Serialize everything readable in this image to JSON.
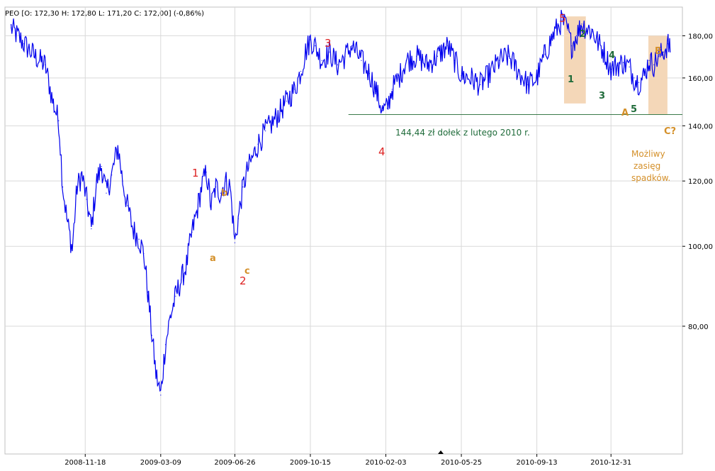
{
  "header": {
    "ohlc_text": "PEO [O: 172,30  H: 172,80  L: 171,20  C: 172,00] (-0,86%)"
  },
  "colors": {
    "price": "#0000ee",
    "red": "#dd2222",
    "orange": "#d4902a",
    "green": "#1f6b3a",
    "band": "#f4d7b8",
    "grid": "#d9d9d9",
    "support": "#3a7a4a"
  },
  "chart_data": {
    "type": "line",
    "title": "",
    "xlabel": "",
    "ylabel": "",
    "scale": "log",
    "ylim": [
      56,
      195
    ],
    "y_ticks": [
      80,
      100,
      120,
      140,
      160,
      180
    ],
    "y_tick_labels": [
      "80,00",
      "100,00",
      "120,00",
      "140,00",
      "160,00",
      "180,00"
    ],
    "x_ticks": [
      "2008-11-18",
      "2009-03-09",
      "2009-06-26",
      "2009-10-15",
      "2010-02-03",
      "2010-05-25",
      "2010-09-13",
      "2010-12-31"
    ],
    "grid": true,
    "series": [
      {
        "x": [
          "2008-08-01",
          "2008-08-20",
          "2008-09-05",
          "2008-09-20",
          "2008-10-01",
          "2008-10-10",
          "2008-10-16",
          "2008-10-22",
          "2008-10-30",
          "2008-11-06",
          "2008-11-13",
          "2008-11-20",
          "2008-11-27",
          "2008-12-05",
          "2008-12-12",
          "2008-12-19",
          "2008-12-27",
          "2009-01-05",
          "2009-01-12",
          "2009-01-19",
          "2009-01-27",
          "2009-02-05",
          "2009-02-12",
          "2009-02-18",
          "2009-02-24",
          "2009-03-02",
          "2009-03-09",
          "2009-03-16",
          "2009-03-23",
          "2009-03-31",
          "2009-04-08",
          "2009-04-16",
          "2009-04-24",
          "2009-05-01",
          "2009-05-08",
          "2009-05-15",
          "2009-05-22",
          "2009-05-29",
          "2009-06-05",
          "2009-06-12",
          "2009-06-19",
          "2009-06-26",
          "2009-07-01",
          "2009-07-08",
          "2009-07-15",
          "2009-07-22",
          "2009-07-30",
          "2009-08-10",
          "2009-08-20",
          "2009-09-01",
          "2009-09-10",
          "2009-09-22",
          "2009-10-01",
          "2009-10-08",
          "2009-10-15",
          "2009-10-22",
          "2009-11-01",
          "2009-11-12",
          "2009-11-24",
          "2009-12-05",
          "2009-12-15",
          "2009-12-29",
          "2010-01-10",
          "2010-01-20",
          "2010-01-29",
          "2010-02-05",
          "2010-02-12",
          "2010-02-22",
          "2010-03-05",
          "2010-03-20",
          "2010-04-05",
          "2010-04-20",
          "2010-05-05",
          "2010-05-15",
          "2010-05-25",
          "2010-06-08",
          "2010-06-22",
          "2010-07-06",
          "2010-07-20",
          "2010-08-03",
          "2010-08-17",
          "2010-08-31",
          "2010-09-13",
          "2010-09-25",
          "2010-10-08",
          "2010-10-20",
          "2010-10-28",
          "2010-11-03",
          "2010-11-10",
          "2010-11-18",
          "2010-11-25",
          "2010-12-04",
          "2010-12-13",
          "2010-12-21",
          "2010-12-31",
          "2011-01-10",
          "2011-01-18",
          "2011-01-27",
          "2011-02-03",
          "2011-02-10",
          "2011-02-18",
          "2011-02-25",
          "2011-03-04",
          "2011-03-11",
          "2011-03-18",
          "2011-03-25",
          "2011-03-28"
        ],
        "values": [
          184,
          176,
          170,
          166,
          150,
          142,
          118,
          108,
          99,
          118,
          122,
          114,
          105,
          120,
          125,
          116,
          122,
          132,
          120,
          112,
          105,
          102,
          98,
          88,
          78,
          70,
          66,
          76,
          82,
          87,
          91,
          95,
          104,
          110,
          118,
          123,
          112,
          118,
          116,
          120,
          118,
          101,
          108,
          118,
          124,
          128,
          133,
          138,
          141,
          146,
          150,
          155,
          163,
          172,
          178,
          175,
          168,
          172,
          166,
          170,
          175,
          168,
          162,
          154,
          146,
          147,
          155,
          160,
          168,
          170,
          166,
          170,
          175,
          168,
          161,
          160,
          157,
          162,
          168,
          170,
          163,
          157,
          160,
          171,
          181,
          188,
          183,
          175,
          180,
          186,
          184,
          182,
          176,
          172,
          164,
          166,
          167,
          165,
          160,
          158,
          161,
          168,
          166,
          170,
          172,
          176,
          172
        ]
      }
    ],
    "annotations": {
      "waves": [
        {
          "label": "1",
          "color": "red"
        },
        {
          "label": "2",
          "color": "red"
        },
        {
          "label": "3",
          "color": "red"
        },
        {
          "label": "4",
          "color": "red"
        },
        {
          "label": "5",
          "color": "red"
        },
        {
          "label": "a",
          "color": "orange"
        },
        {
          "label": "b",
          "color": "orange"
        },
        {
          "label": "c",
          "color": "orange"
        },
        {
          "label": "A",
          "color": "orange"
        },
        {
          "label": "B",
          "color": "orange"
        },
        {
          "label": "C?",
          "color": "orange"
        },
        {
          "label": "1",
          "color": "green"
        },
        {
          "label": "2",
          "color": "green"
        },
        {
          "label": "3",
          "color": "green"
        },
        {
          "label": "4",
          "color": "green"
        },
        {
          "label": "5",
          "color": "green"
        }
      ],
      "support_label": "144,44 zł dołek z lutego 2010 r.",
      "range_note": [
        "Możliwy",
        "zasięg",
        "spadków."
      ]
    }
  }
}
